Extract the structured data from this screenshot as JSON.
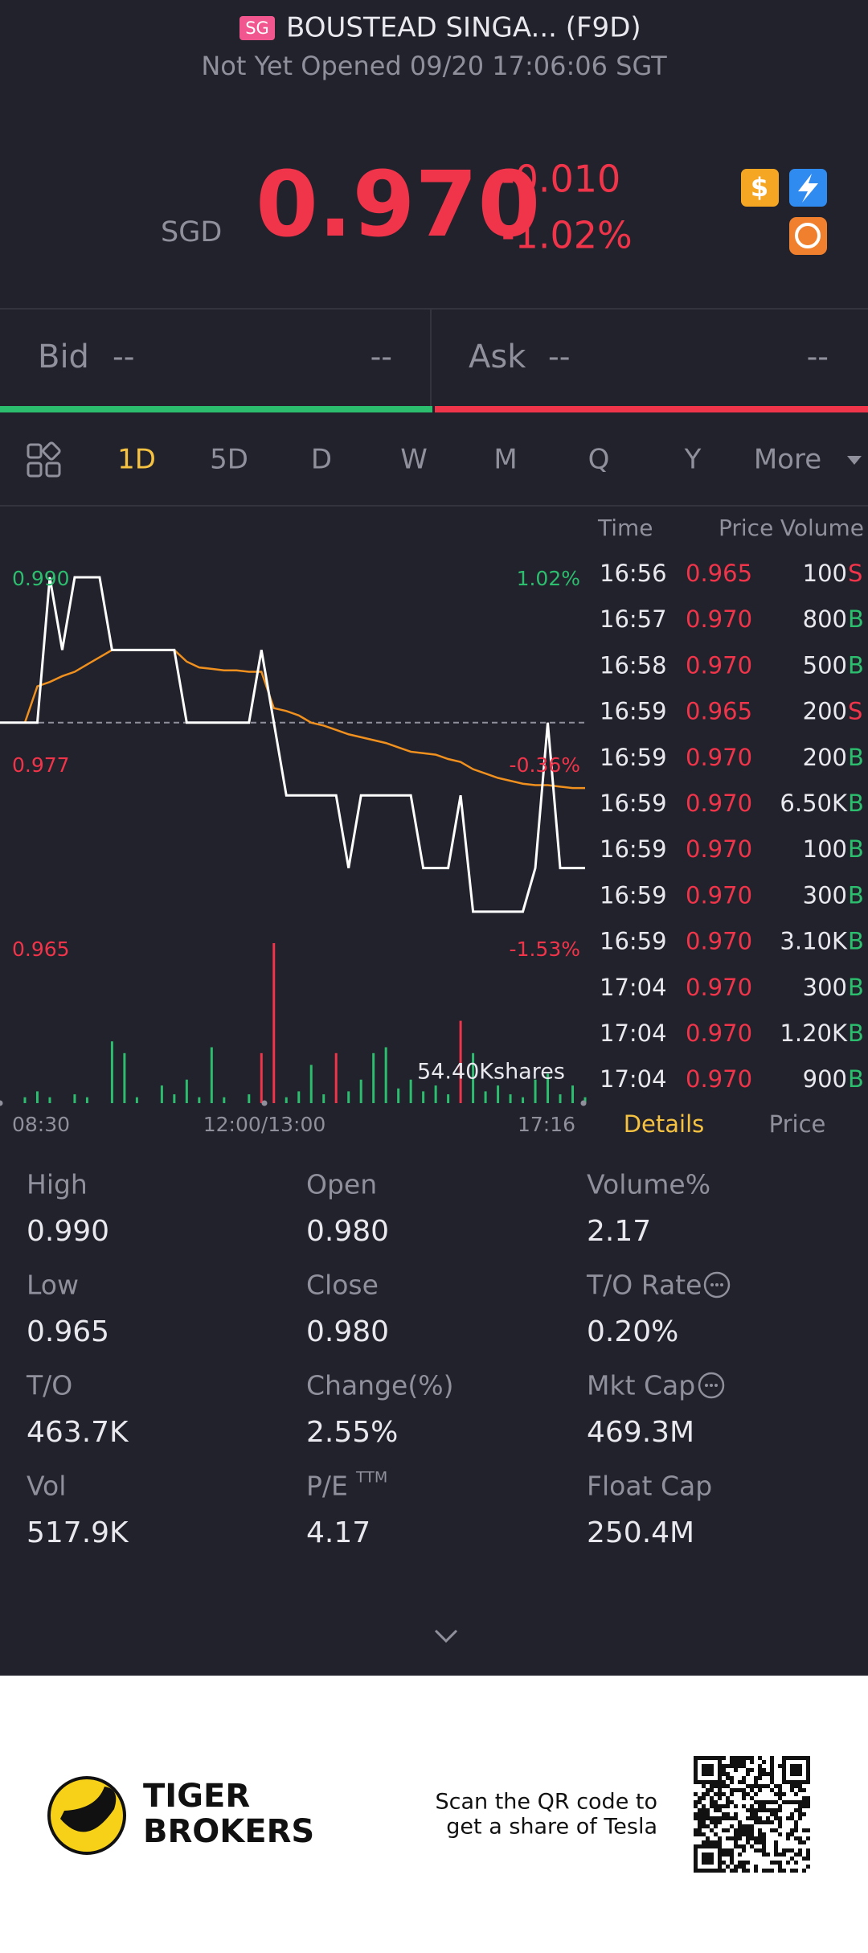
{
  "header": {
    "badge": "SG",
    "title": "BOUSTEAD SINGA... (F9D)",
    "subtitle": "Not Yet Opened 09/20 17:06:06 SGT"
  },
  "quote": {
    "currency": "SGD",
    "price": "0.970",
    "change": "-0.010",
    "change_pct": "-1.02%"
  },
  "bid": {
    "label": "Bid",
    "price": "--",
    "size": "--"
  },
  "ask": {
    "label": "Ask",
    "price": "--",
    "size": "--"
  },
  "tabs": {
    "items": [
      "1D",
      "5D",
      "D",
      "W",
      "M",
      "Q",
      "Y",
      "More"
    ],
    "active": 0
  },
  "chart_data": {
    "type": "line",
    "ylim": [
      0.965,
      0.99
    ],
    "yticks": [
      {
        "value": 0.99,
        "label": "0.990"
      },
      {
        "value": 0.977,
        "label": "0.977"
      },
      {
        "value": 0.965,
        "label": "0.965"
      }
    ],
    "pct_ticks": [
      "1.02%",
      "-0.36%",
      "-1.53%"
    ],
    "ref_line": 0.98,
    "x_labels": [
      "08:30",
      "12:00/13:00",
      "17:16"
    ],
    "price_line": {
      "color": "#ffffff",
      "values": [
        0.98,
        0.98,
        0.98,
        0.98,
        0.99,
        0.985,
        0.99,
        0.99,
        0.99,
        0.985,
        0.985,
        0.985,
        0.985,
        0.985,
        0.985,
        0.98,
        0.98,
        0.98,
        0.98,
        0.98,
        0.98,
        0.985,
        0.98,
        0.975,
        0.975,
        0.975,
        0.975,
        0.975,
        0.97,
        0.975,
        0.975,
        0.975,
        0.975,
        0.975,
        0.97,
        0.97,
        0.97,
        0.975,
        0.967,
        0.967,
        0.967,
        0.967,
        0.967,
        0.97,
        0.98,
        0.97,
        0.97,
        0.97
      ]
    },
    "avg_line": {
      "color": "#f0901e",
      "values": [
        0.98,
        0.98,
        0.98,
        0.9825,
        0.9828,
        0.9832,
        0.9835,
        0.984,
        0.9845,
        0.985,
        0.985,
        0.985,
        0.985,
        0.985,
        0.985,
        0.9842,
        0.9838,
        0.9837,
        0.9836,
        0.9836,
        0.9835,
        0.9835,
        0.981,
        0.9808,
        0.9805,
        0.98,
        0.9798,
        0.9795,
        0.9792,
        0.979,
        0.9788,
        0.9786,
        0.9783,
        0.978,
        0.9779,
        0.9778,
        0.9775,
        0.9773,
        0.9768,
        0.9765,
        0.9762,
        0.976,
        0.9758,
        0.9757,
        0.9757,
        0.9756,
        0.9755,
        0.9755
      ]
    },
    "volume_label": "54.40Kshares",
    "volume_lim": [
      0,
      54.4
    ],
    "buy_volumes": {
      "color": "#2dbd6e",
      "values": [
        null,
        null,
        2,
        4,
        2,
        null,
        3,
        2,
        null,
        21,
        17,
        2,
        null,
        6,
        3,
        8,
        2,
        19,
        2,
        null,
        3,
        null,
        null,
        2,
        4,
        13,
        3,
        null,
        4,
        8,
        17,
        19,
        5,
        8,
        4,
        6,
        3,
        null,
        17,
        4,
        6,
        3,
        2,
        8,
        10,
        3,
        6,
        2
      ]
    },
    "sell_volumes": {
      "color": "#f0344a",
      "values": [
        null,
        null,
        null,
        null,
        null,
        null,
        null,
        null,
        null,
        null,
        null,
        null,
        null,
        null,
        null,
        null,
        null,
        null,
        null,
        null,
        null,
        17,
        54.4,
        null,
        null,
        null,
        null,
        17,
        null,
        null,
        null,
        null,
        null,
        null,
        null,
        null,
        null,
        28,
        null,
        null,
        null,
        null,
        null,
        null,
        null,
        null,
        null,
        null
      ]
    }
  },
  "trades": {
    "headers": [
      "Time",
      "Price",
      "Volume"
    ],
    "rows": [
      [
        "16:56",
        "0.965",
        "100",
        "S"
      ],
      [
        "16:57",
        "0.970",
        "800",
        "B"
      ],
      [
        "16:58",
        "0.970",
        "500",
        "B"
      ],
      [
        "16:59",
        "0.965",
        "200",
        "S"
      ],
      [
        "16:59",
        "0.970",
        "200",
        "B"
      ],
      [
        "16:59",
        "0.970",
        "6.50K",
        "B"
      ],
      [
        "16:59",
        "0.970",
        "100",
        "B"
      ],
      [
        "16:59",
        "0.970",
        "300",
        "B"
      ],
      [
        "16:59",
        "0.970",
        "3.10K",
        "B"
      ],
      [
        "17:04",
        "0.970",
        "300",
        "B"
      ],
      [
        "17:04",
        "0.970",
        "1.20K",
        "B"
      ],
      [
        "17:04",
        "0.970",
        "900",
        "B"
      ]
    ],
    "tabs": [
      "Details",
      "Price"
    ]
  },
  "stats": [
    {
      "label": "High",
      "value": "0.990"
    },
    {
      "label": "Open",
      "value": "0.980"
    },
    {
      "label": "Volume%",
      "value": "2.17"
    },
    {
      "label": "Low",
      "value": "0.965"
    },
    {
      "label": "Close",
      "value": "0.980"
    },
    {
      "label": "T/O Rate",
      "value": "0.20%"
    },
    {
      "label": "T/O",
      "value": "463.7K"
    },
    {
      "label": "Change(%)",
      "value": "2.55%"
    },
    {
      "label": "Mkt Cap",
      "value": "469.3M"
    },
    {
      "label": "Vol",
      "value": "517.9K"
    },
    {
      "label": "P/E",
      "sup": "TTM",
      "value": "4.17"
    },
    {
      "label": "Float Cap",
      "value": "250.4M"
    }
  ],
  "footer": {
    "brand": [
      "TIGER",
      "BROKERS"
    ],
    "promo": [
      "Scan the QR code to",
      "get a share of Tesla"
    ]
  }
}
